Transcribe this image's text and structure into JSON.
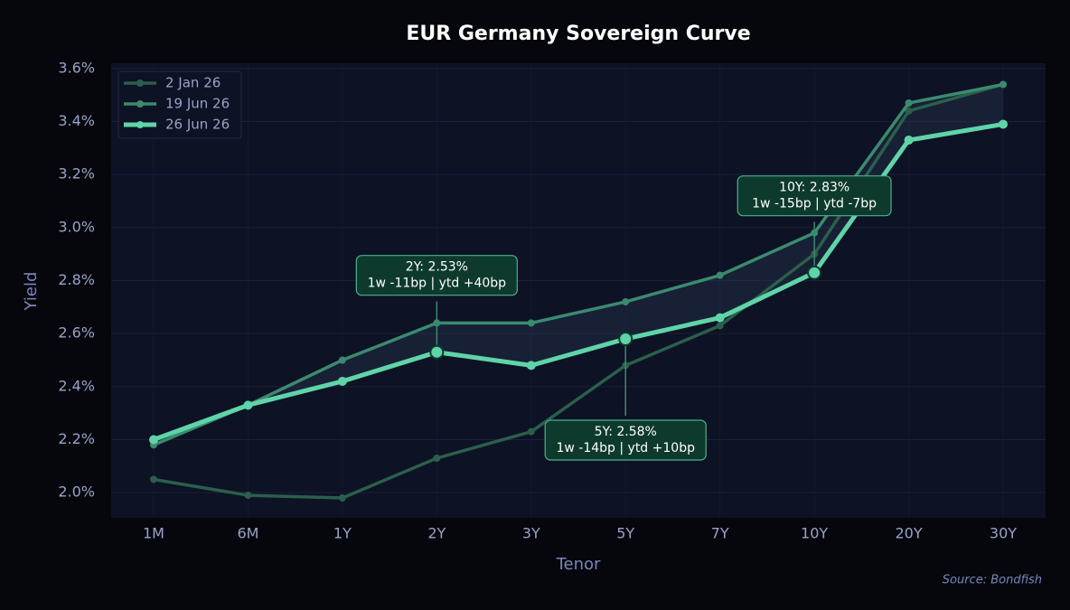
{
  "chart_data": {
    "type": "line",
    "title": "EUR Germany Sovereign Curve",
    "x_label": "Tenor",
    "y_label": "Yield",
    "source": "Source: Bondfish",
    "categories": [
      "1M",
      "6M",
      "1Y",
      "2Y",
      "3Y",
      "5Y",
      "7Y",
      "10Y",
      "20Y",
      "30Y"
    ],
    "series": [
      {
        "name": "2 Jan 26",
        "color": "#2b5f4b",
        "values": [
          2.05,
          1.99,
          1.98,
          2.13,
          2.23,
          2.48,
          2.63,
          2.9,
          3.44,
          3.54
        ]
      },
      {
        "name": "19 Jun 26",
        "color": "#3b8a6f",
        "values": [
          2.18,
          2.33,
          2.5,
          2.64,
          2.64,
          2.72,
          2.82,
          2.98,
          3.47,
          3.54
        ]
      },
      {
        "name": "26 Jun 26",
        "color": "#5fd4a8",
        "values": [
          2.2,
          2.33,
          2.42,
          2.53,
          2.48,
          2.58,
          2.66,
          2.83,
          3.33,
          3.39
        ]
      }
    ],
    "ylim": [
      1.905,
      3.62
    ],
    "yticks": [
      {
        "value": 2.0,
        "label": "2.0%"
      },
      {
        "value": 2.2,
        "label": "2.2%"
      },
      {
        "value": 2.4,
        "label": "2.4%"
      },
      {
        "value": 2.6,
        "label": "2.6%"
      },
      {
        "value": 2.8,
        "label": "2.8%"
      },
      {
        "value": 3.0,
        "label": "3.0%"
      },
      {
        "value": 3.2,
        "label": "3.2%"
      },
      {
        "value": 3.4,
        "label": "3.4%"
      },
      {
        "value": 3.6,
        "label": "3.6%"
      }
    ],
    "grid": true,
    "legend": "upper left",
    "annotations": [
      {
        "x": "2Y",
        "lines": [
          "2Y: 2.53%",
          "1w -11bp | ytd +40bp"
        ]
      },
      {
        "x": "5Y",
        "lines": [
          "5Y: 2.58%",
          "1w -14bp | ytd +10bp"
        ]
      },
      {
        "x": "10Y",
        "lines": [
          "10Y: 2.83%",
          "1w -15bp | ytd -7bp"
        ]
      }
    ]
  }
}
